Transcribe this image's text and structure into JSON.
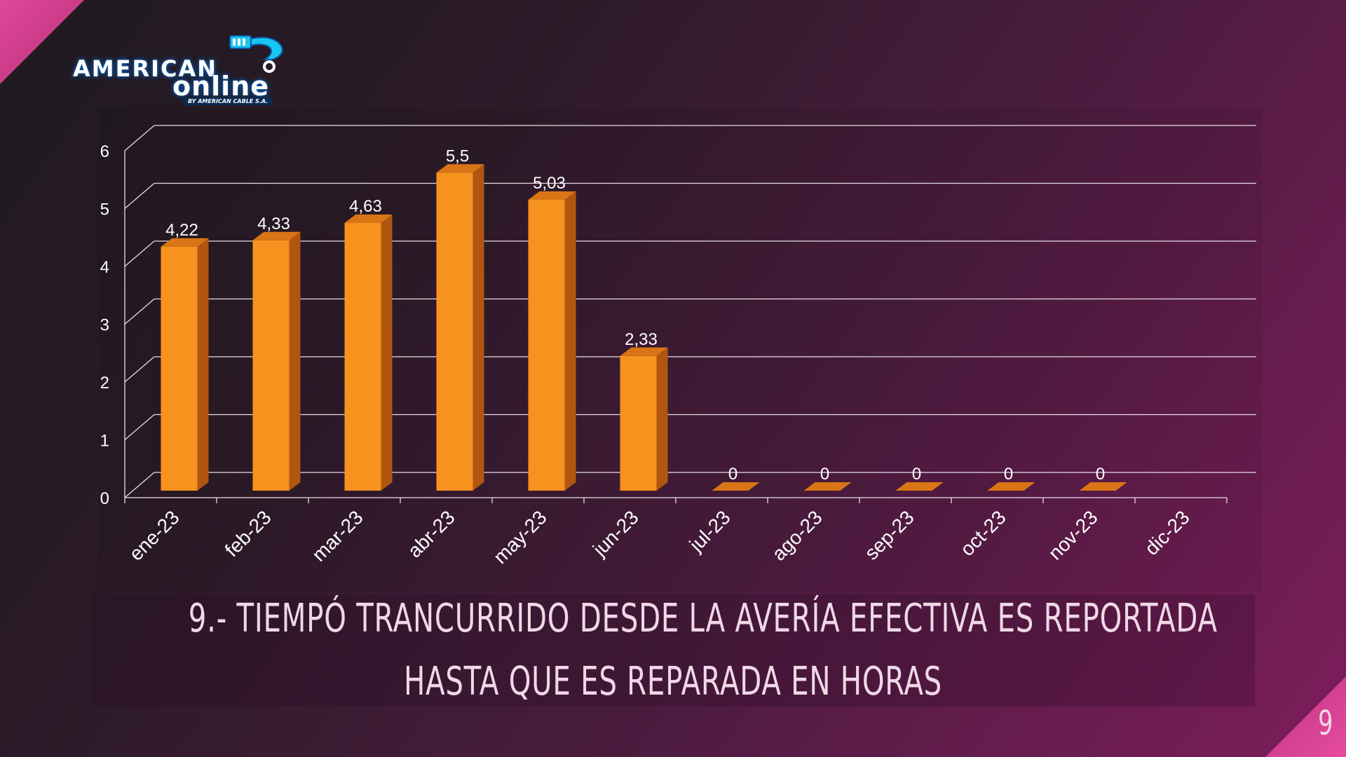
{
  "logo": {
    "word1": "AMERICAN",
    "word2": "online",
    "tagline": "BY AMERICAN CABLE S.A."
  },
  "title": {
    "line1": "9.- TIEMPÓ TRANCURRIDO DESDE LA AVERÍA EFECTIVA ES REPORTADA",
    "line2": "HASTA QUE ES REPARADA EN HORAS"
  },
  "page_number": "9",
  "colors": {
    "bar_front": "#f7921e",
    "bar_side": "#b0560f",
    "bar_top": "#d97516",
    "gridline": "#e8dde6",
    "text": "#ffffff"
  },
  "chart_data": {
    "type": "bar",
    "categories": [
      "ene-23",
      "feb-23",
      "mar-23",
      "abr-23",
      "may-23",
      "jun-23",
      "jul-23",
      "ago-23",
      "sep-23",
      "oct-23",
      "nov-23",
      "dic-23"
    ],
    "values": [
      4.22,
      4.33,
      4.63,
      5.5,
      5.03,
      2.33,
      0,
      0,
      0,
      0,
      0,
      null
    ],
    "data_labels": [
      "4,22",
      "4,33",
      "4,63",
      "5,5",
      "5,03",
      "2,33",
      "0",
      "0",
      "0",
      "0",
      "0",
      ""
    ],
    "yticks": [
      "0",
      "1",
      "2",
      "3",
      "4",
      "5",
      "6"
    ],
    "ylim": [
      0,
      6
    ],
    "grid": true,
    "style": "3d-column"
  }
}
